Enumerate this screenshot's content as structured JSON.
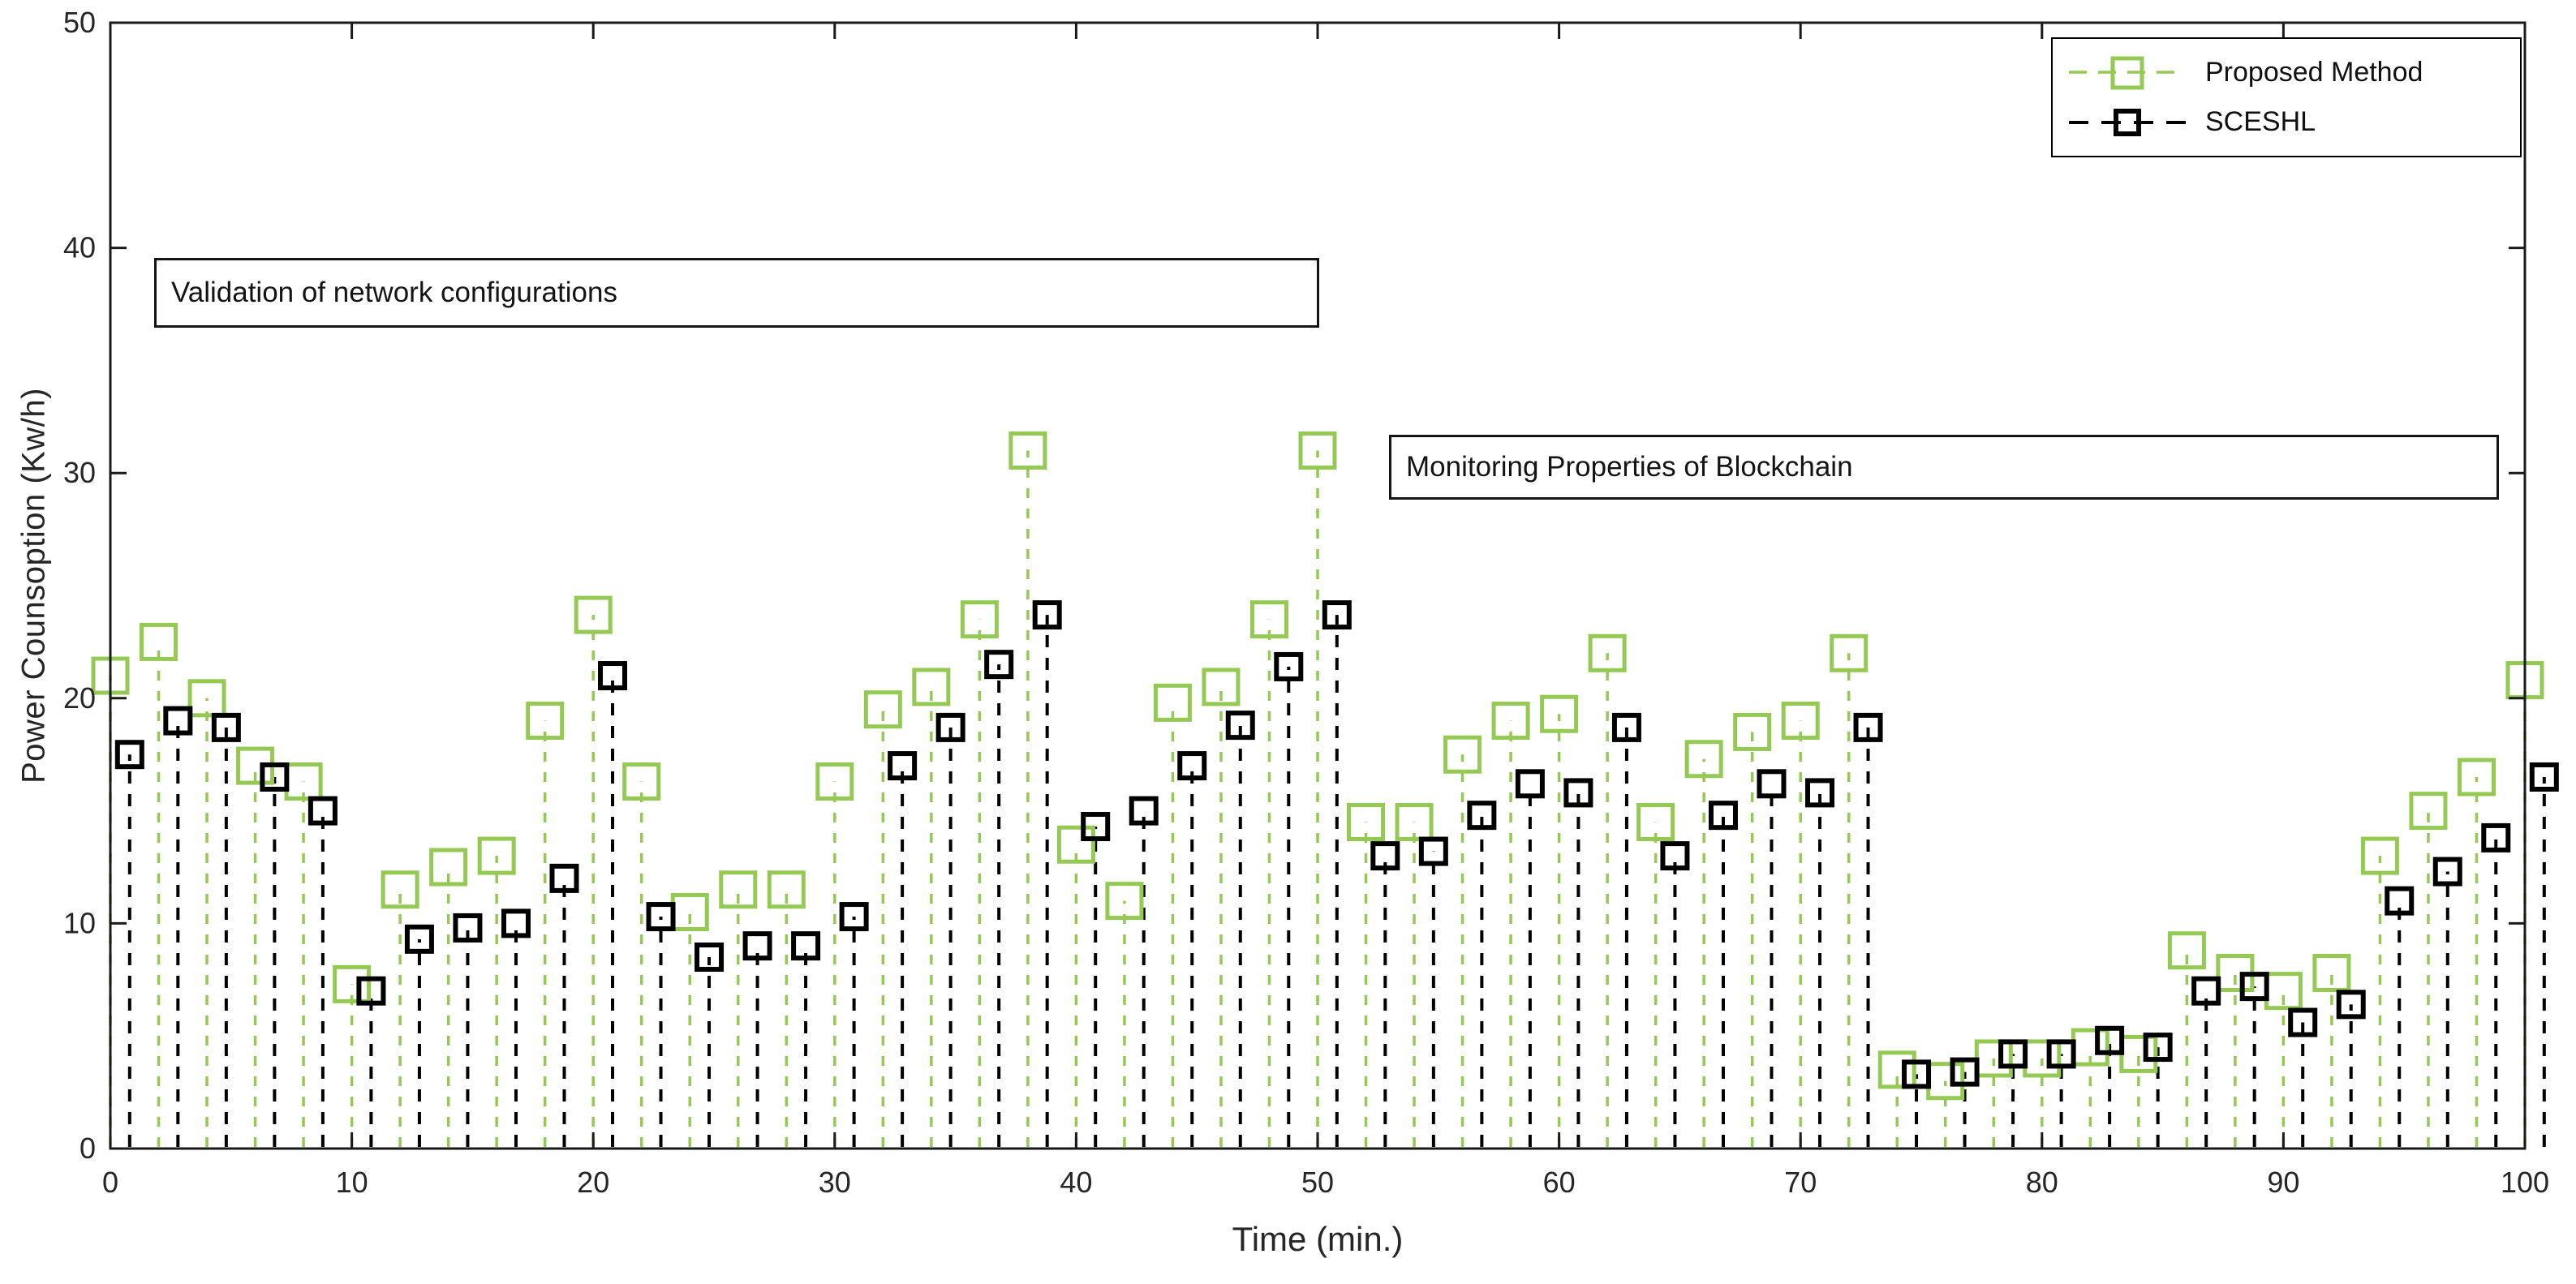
{
  "chart_data": {
    "type": "stem",
    "title": "",
    "xlabel": "Time (min.)",
    "ylabel": "Power Counsoption (Kw/h)",
    "xlim": [
      0,
      100
    ],
    "ylim": [
      0,
      50
    ],
    "xticks": [
      0,
      10,
      20,
      30,
      40,
      50,
      60,
      70,
      80,
      90,
      100
    ],
    "yticks": [
      0,
      10,
      20,
      30,
      40,
      50
    ],
    "grid": false,
    "legend_position": "top-right",
    "x": [
      0,
      2,
      4,
      6,
      8,
      10,
      12,
      14,
      16,
      18,
      20,
      22,
      24,
      26,
      28,
      30,
      32,
      34,
      36,
      38,
      40,
      42,
      44,
      46,
      48,
      50,
      52,
      54,
      56,
      58,
      60,
      62,
      64,
      66,
      68,
      70,
      72,
      74,
      76,
      78,
      80,
      82,
      84,
      86,
      88,
      90,
      92,
      94,
      96,
      98,
      100
    ],
    "series": [
      {
        "name": "Proposed Method",
        "color": "#94c954",
        "marker": "open-square",
        "line_style": "dashed",
        "x_offset": 0,
        "values": [
          21,
          22.5,
          20,
          17,
          16.3,
          7.3,
          11.5,
          12.5,
          13,
          19,
          23.7,
          16.3,
          10.5,
          11.5,
          11.5,
          16.3,
          19.5,
          20.5,
          23.5,
          31,
          13.5,
          11,
          19.8,
          20.5,
          23.5,
          31,
          14.5,
          14.5,
          17.5,
          19,
          19.3,
          22,
          14.5,
          17.3,
          18.5,
          19,
          22,
          3.5,
          3,
          4,
          4,
          4.5,
          4.2,
          8.8,
          7.8,
          7,
          7.8,
          13,
          15,
          16.5,
          20.8
        ]
      },
      {
        "name": "SCESHL",
        "color": "#000000",
        "marker": "open-square",
        "line_style": "dashed",
        "x_offset": 0.8,
        "values": [
          17.5,
          19,
          18.7,
          16.5,
          15,
          7,
          9.3,
          9.8,
          10,
          12,
          21,
          10.3,
          8.5,
          9,
          9,
          10.3,
          17,
          18.7,
          21.5,
          23.7,
          14.3,
          15,
          17,
          18.8,
          21.4,
          23.7,
          13,
          13.2,
          14.8,
          16.2,
          15.8,
          18.7,
          13,
          14.8,
          16.2,
          15.8,
          18.7,
          3.3,
          3.4,
          4.2,
          4.2,
          4.8,
          4.5,
          7,
          7.2,
          5.6,
          6.4,
          11,
          12.3,
          13.8,
          16.5
        ]
      }
    ],
    "annotations": [
      {
        "text": "Validation of network configurations"
      },
      {
        "text": "Monitoring Properties of Blockchain"
      }
    ]
  }
}
